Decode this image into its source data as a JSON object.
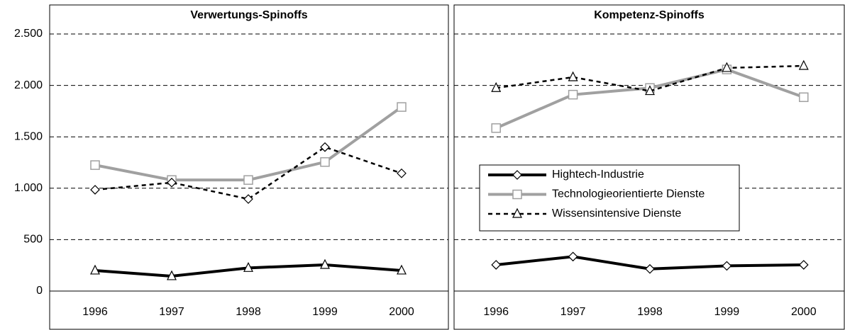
{
  "chart_data": [
    {
      "type": "line",
      "title": "Verwertungs-Spinoffs",
      "categories": [
        "1996",
        "1997",
        "1998",
        "1999",
        "2000"
      ],
      "series": [
        {
          "color": "#000000",
          "dash": false,
          "marker": "triangle",
          "values": [
            200,
            145,
            225,
            255,
            200
          ]
        },
        {
          "color": "#a0a0a0",
          "dash": false,
          "marker": "square",
          "values": [
            1225,
            1080,
            1080,
            1255,
            1790
          ]
        },
        {
          "color": "#000000",
          "dash": true,
          "marker": "diamond",
          "values": [
            985,
            1055,
            895,
            1400,
            1145
          ]
        }
      ],
      "ylim": [
        0,
        2500
      ],
      "yticks": [
        0,
        500,
        {
          "value": 1000,
          "label": "1.000"
        },
        {
          "value": 1500,
          "label": "1.500"
        },
        {
          "value": 2000,
          "label": "2.000"
        },
        {
          "value": 2500,
          "label": "2.500"
        }
      ],
      "grid": true
    },
    {
      "type": "line",
      "title": "Kompetenz-Spinoffs",
      "categories": [
        "1996",
        "1997",
        "1998",
        "1999",
        "2000"
      ],
      "series": [
        {
          "name": "Hightech-Industrie",
          "color": "#000000",
          "dash": false,
          "marker": "diamond",
          "values": [
            255,
            335,
            215,
            245,
            255
          ]
        },
        {
          "name": "Technologieorientierte Dienste",
          "color": "#a0a0a0",
          "dash": false,
          "marker": "square",
          "values": [
            1585,
            1910,
            1975,
            2155,
            1885
          ]
        },
        {
          "name": "Wissensintensive Dienste",
          "color": "#000000",
          "dash": true,
          "marker": "triangle",
          "values": [
            1975,
            2080,
            1945,
            2170,
            2190
          ]
        }
      ],
      "ylim": [
        0,
        2500
      ],
      "yticks": [
        0,
        500,
        1000,
        1500,
        2000,
        2500
      ],
      "grid": true,
      "legend": "center-left"
    }
  ]
}
